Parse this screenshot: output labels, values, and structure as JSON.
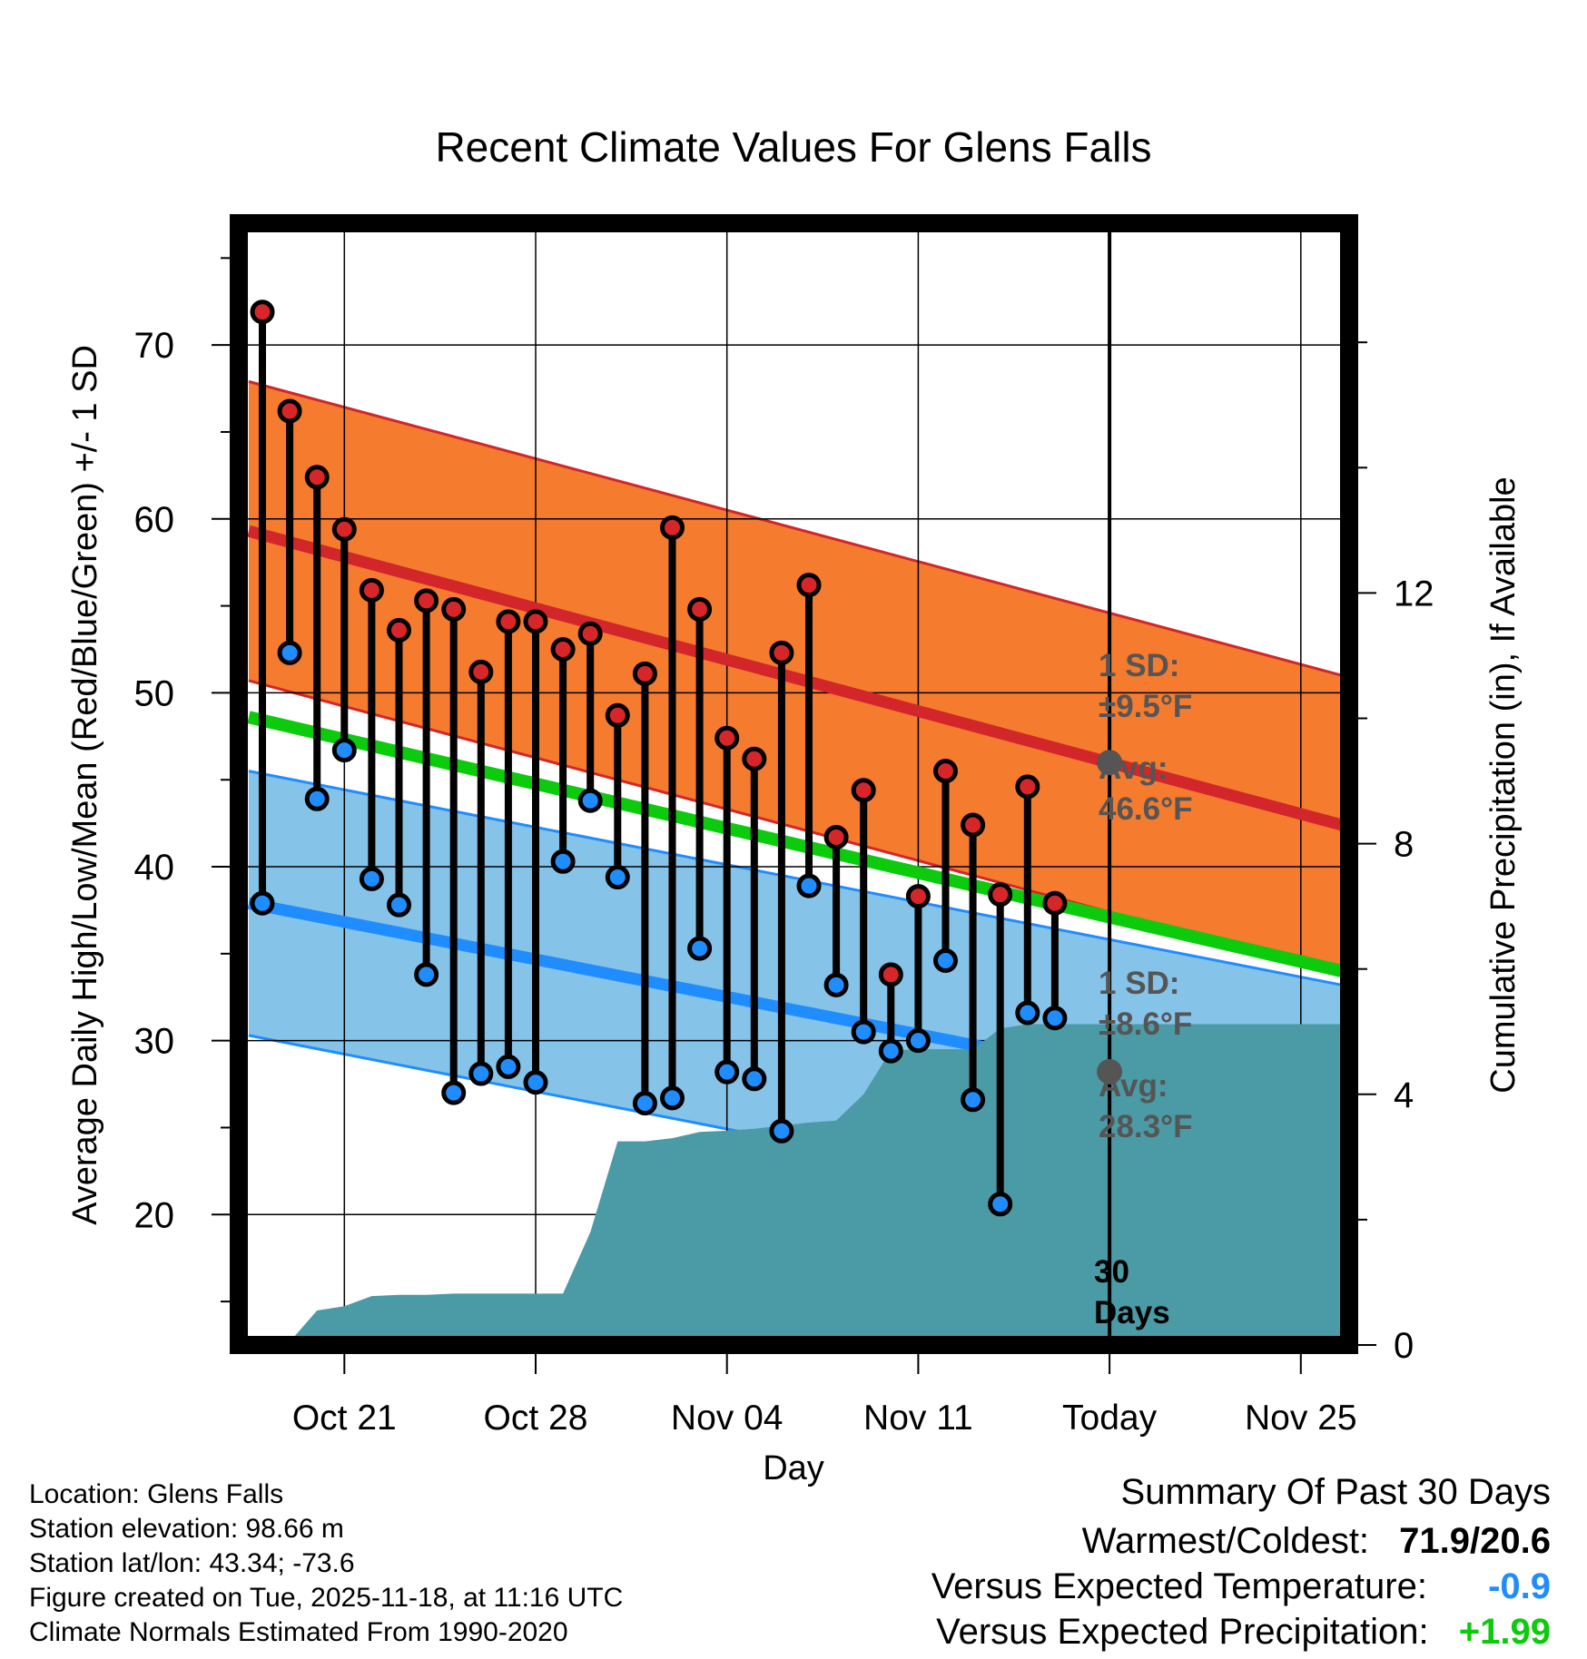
{
  "chart_data": {
    "type": "line",
    "title": "Recent Climate Values For Glens Falls",
    "xlabel": "Day",
    "ylabel": "Average Daily High/Low/Mean (Red/Blue/Green) +/- 1 SD",
    "y2label": "Cumulative Precipitation (in), If Available",
    "ylim": [
      12.5,
      77
    ],
    "y2lim": [
      0,
      17.9
    ],
    "xlim": [
      -0.5,
      39.5
    ],
    "x_ticks": [
      {
        "day": 3,
        "label": "Oct 21"
      },
      {
        "day": 10,
        "label": "Oct 28"
      },
      {
        "day": 17,
        "label": "Nov 04"
      },
      {
        "day": 24,
        "label": "Nov 11"
      },
      {
        "day": 31,
        "label": "Today"
      },
      {
        "day": 38,
        "label": "Nov 25"
      }
    ],
    "y_ticks": [
      20,
      30,
      40,
      50,
      60,
      70
    ],
    "y2_ticks": [
      0,
      4,
      8,
      12
    ],
    "today_index": 31,
    "normal_high": {
      "start": 59.3,
      "end": 42.4,
      "sd": 8.6
    },
    "normal_low": {
      "start": 37.9,
      "end": 25.6,
      "sd": 7.6
    },
    "normal_mean": {
      "start": 48.6,
      "end": 34.0
    },
    "highs": [
      71.9,
      66.2,
      62.4,
      59.4,
      55.9,
      53.6,
      55.3,
      54.8,
      51.2,
      54.1,
      54.1,
      52.5,
      53.4,
      48.7,
      51.1,
      59.5,
      54.8,
      47.4,
      46.2,
      52.3,
      56.2,
      41.7,
      44.4,
      33.8,
      38.3,
      45.5,
      42.4,
      38.4,
      44.6,
      37.9
    ],
    "lows": [
      37.9,
      52.3,
      43.9,
      46.7,
      39.3,
      37.8,
      33.8,
      27.0,
      28.1,
      28.5,
      27.6,
      40.3,
      43.8,
      39.4,
      26.4,
      26.7,
      35.3,
      28.2,
      27.8,
      24.8,
      38.9,
      33.2,
      30.5,
      29.4,
      30.0,
      34.6,
      26.6,
      20.6,
      31.6,
      31.3
    ],
    "precip_cumulative": [
      0,
      0.05,
      0.55,
      0.62,
      0.78,
      0.8,
      0.8,
      0.82,
      0.82,
      0.82,
      0.82,
      0.82,
      1.8,
      3.25,
      3.25,
      3.3,
      3.4,
      3.42,
      3.45,
      3.5,
      3.55,
      3.58,
      4.0,
      4.7,
      4.72,
      4.72,
      4.72,
      5.05,
      5.12,
      5.12,
      5.12,
      5.12
    ],
    "annotations": {
      "high_sd": "1 SD:",
      "high_sd_value": "±9.5°F",
      "high_avg": "Avg:",
      "high_avg_value": "46.6°F",
      "low_sd": "1 SD:",
      "low_sd_value": "±8.6°F",
      "low_avg": "Avg:",
      "low_avg_value": "28.3°F",
      "days_num": "30",
      "days_word": "Days"
    },
    "colors": {
      "high_band": "#f57b2e",
      "high_line": "#d2262a",
      "low_band": "#85c3e8",
      "low_line": "#1f8dff",
      "mean_line": "#0ccb0c",
      "precip": "#4a9ba5",
      "high_marker": "#d6262a",
      "low_marker": "#1f8dff",
      "avg_marker": "#555555",
      "annotation_text": "#555555"
    }
  },
  "info": {
    "location": "Location: Glens Falls",
    "elevation": "Station elevation: 98.66 m",
    "latlon": "Station lat/lon: 43.34; -73.6",
    "created": "Figure created on Tue, 2025-11-18, at 11:16 UTC",
    "normals": "Climate Normals Estimated From 1990-2020"
  },
  "summary": {
    "title": "Summary Of Past 30 Days",
    "warm_cold_label": "Warmest/Coldest:",
    "warm_cold_value": "71.9/20.6",
    "temp_label": "Versus Expected Temperature:",
    "temp_value": "-0.9",
    "temp_color": "#1f8dff",
    "precip_label": "Versus Expected Precipitation:",
    "precip_value": "+1.99",
    "precip_color": "#0ccb0c"
  }
}
